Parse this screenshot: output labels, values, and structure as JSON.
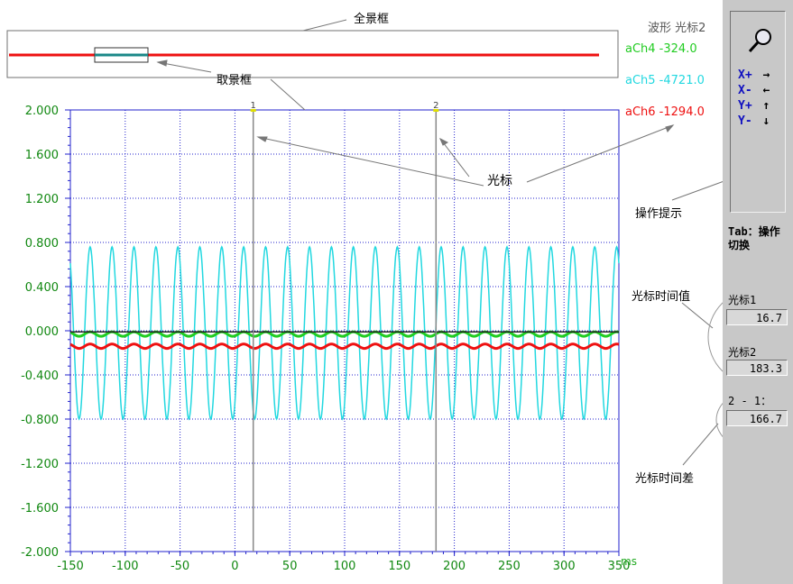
{
  "header": {
    "title_mode": "波形",
    "title_cursor": "光标2"
  },
  "channels": [
    {
      "label": "aCh4 -324.0",
      "color": "#22cc22"
    },
    {
      "label": "aCh5 -4721.0",
      "color": "#22d8e0"
    },
    {
      "label": "aCh6 -1294.0",
      "color": "#ee1111"
    }
  ],
  "annotations": {
    "overview_box": "全景框",
    "view_box": "取景框",
    "cursor": "光标",
    "op_hint": "操作提示",
    "cursor_time": "光标时间值",
    "cursor_diff": "光标时间差"
  },
  "sidebar": {
    "zoom_icon": "magnifier-icon",
    "keys": [
      {
        "label": "X+",
        "arrow": "→"
      },
      {
        "label": "X-",
        "arrow": "←"
      },
      {
        "label": "Y+",
        "arrow": "↑"
      },
      {
        "label": "Y-",
        "arrow": "↓"
      }
    ],
    "tab_hint": "Tab：操作切换",
    "cursor1_label": "光标1",
    "cursor1_value": "16.7",
    "cursor2_label": "光标2",
    "cursor2_value": "183.3",
    "diff_label": "2 - 1：",
    "diff_value": "166.7"
  },
  "chart_data": {
    "type": "line",
    "x_unit": "ms",
    "xlim": [
      -150,
      350
    ],
    "ylim": [
      -2.0,
      2.0
    ],
    "x_ticks": [
      "-150",
      "-100",
      "-50",
      "0",
      "50",
      "100",
      "150",
      "200",
      "250",
      "300",
      "350"
    ],
    "y_ticks": [
      "2.000",
      "1.600",
      "1.200",
      "0.800",
      "0.400",
      "0.000",
      "-0.400",
      "-0.800",
      "-1.200",
      "-1.600",
      "-2.000"
    ],
    "grid": true,
    "cursors": [
      {
        "label": "1",
        "x": 16.7
      },
      {
        "label": "2",
        "x": 183.3
      }
    ],
    "series": [
      {
        "name": "aCh5",
        "color": "#22d8e0",
        "amplitude": 0.78,
        "offset": -0.02,
        "period_ms": 20,
        "x_start": -150,
        "x_end": 350
      },
      {
        "name": "aCh4",
        "color": "#22cc22",
        "amplitude": 0.02,
        "offset": -0.03,
        "period_ms": 20,
        "x_start": -150,
        "x_end": 350
      },
      {
        "name": "aCh6",
        "color": "#ee1111",
        "amplitude": 0.02,
        "offset": -0.14,
        "period_ms": 20,
        "x_start": -150,
        "x_end": 350
      }
    ]
  }
}
